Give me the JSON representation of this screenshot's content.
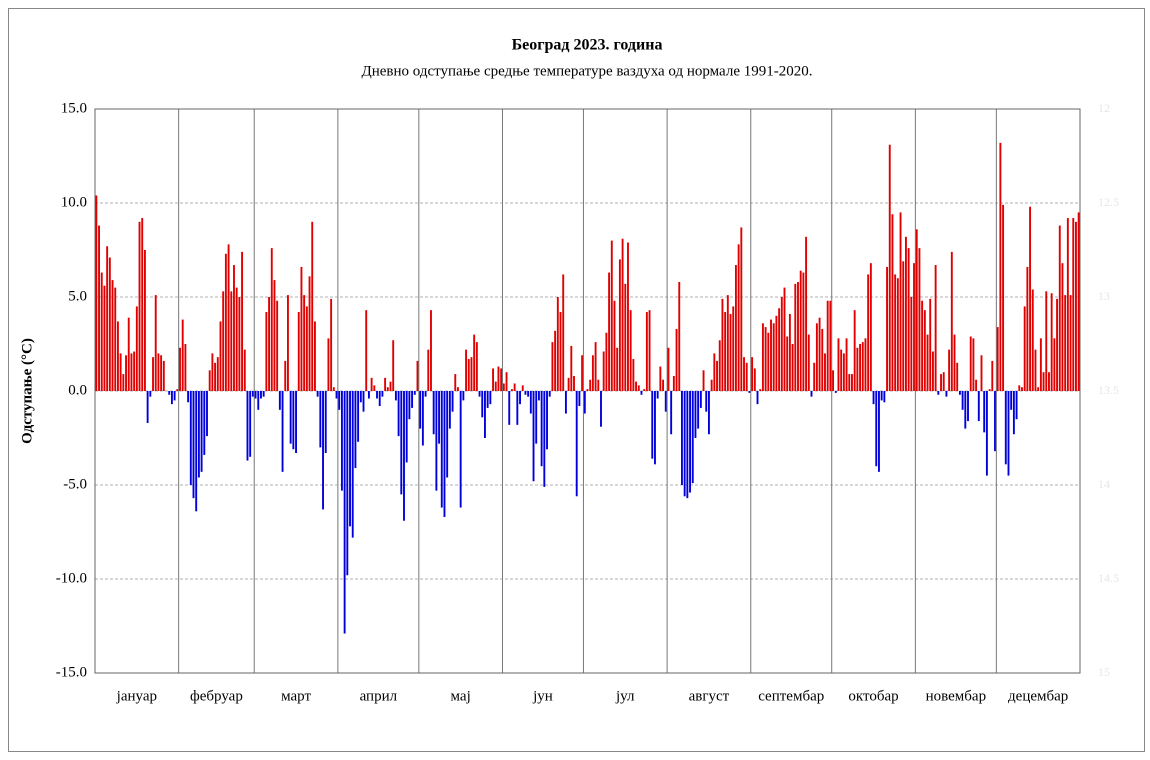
{
  "chart_data": {
    "type": "bar",
    "title": "Београд  2023. година",
    "subtitle": "Дневно одступање средње температуре ваздуха од нормале 1991-2020.",
    "ylabel": "Одступање (°C)",
    "categories": [
      "јануар",
      "фебруар",
      "март",
      "април",
      "мај",
      "јун",
      "јул",
      "август",
      "септембар",
      "октобар",
      "новембар",
      "децембар"
    ],
    "values": [
      [
        10.4,
        8.8,
        6.3,
        5.6,
        7.7,
        7.1,
        5.9,
        5.5,
        3.7,
        2.0,
        0.9,
        1.9,
        3.9,
        2.0,
        2.1,
        4.5,
        9.0,
        9.2,
        7.5,
        -1.7,
        -0.3,
        1.8,
        5.1,
        2.0,
        1.9,
        1.6,
        0,
        -0.2,
        -0.7,
        -0.5,
        0.1
      ],
      [
        2.3,
        3.8,
        2.5,
        -0.6,
        -5.0,
        -5.7,
        -6.4,
        -4.6,
        -4.3,
        -3.4,
        -2.4,
        1.1,
        2.0,
        1.5,
        1.8,
        3.7,
        5.3,
        7.3,
        7.8,
        5.3,
        6.7,
        5.5,
        5.0,
        7.4,
        2.2,
        -3.7,
        -3.5,
        -0.3
      ],
      [
        -0.4,
        -1.0,
        -0.4,
        -0.3,
        4.2,
        5.0,
        7.6,
        5.9,
        4.8,
        -1.0,
        -4.3,
        1.6,
        5.1,
        -2.8,
        -3.1,
        -3.3,
        4.2,
        6.6,
        5.1,
        4.5,
        6.1,
        9.0,
        3.7,
        -0.3,
        -3.0,
        -6.3,
        -3.3,
        2.8,
        4.9,
        0.2,
        -0.4
      ],
      [
        -1.0,
        -5.3,
        -12.9,
        -9.8,
        -7.2,
        -7.8,
        -4.1,
        -2.7,
        -0.6,
        -1.1,
        4.3,
        -0.4,
        0.7,
        0.3,
        -0.4,
        -0.8,
        -0.3,
        0.7,
        0.2,
        0.5,
        2.7,
        -0.5,
        -2.4,
        -5.5,
        -6.9,
        -3.8,
        -1.5,
        -0.9,
        -0.2,
        1.6
      ],
      [
        -2.0,
        -2.9,
        -0.3,
        2.2,
        4.3,
        -2.3,
        -5.3,
        -2.8,
        -6.2,
        -6.7,
        -4.6,
        -2.0,
        -1.1,
        0.9,
        0.2,
        -6.2,
        -0.5,
        2.2,
        1.7,
        1.8,
        3.0,
        2.6,
        -0.3,
        -1.4,
        -2.5,
        -0.9,
        -0.7,
        1.2,
        0.5,
        1.3,
        1.2
      ],
      [
        0.4,
        1.0,
        -1.8,
        0.1,
        0.4,
        -1.8,
        -0.7,
        0.3,
        -0.2,
        -0.3,
        -1.2,
        -4.8,
        -2.8,
        -0.5,
        -4.0,
        -5.1,
        -3.1,
        -0.3,
        2.6,
        3.2,
        5.0,
        4.2,
        6.2,
        -1.2,
        0.7,
        2.4,
        0.8,
        -5.6,
        -0.8,
        1.9
      ],
      [
        -1.2,
        0.1,
        0.6,
        1.9,
        2.6,
        0.6,
        -1.9,
        2.1,
        3.1,
        6.3,
        8.0,
        4.8,
        2.3,
        7.0,
        8.1,
        5.7,
        7.9,
        4.3,
        1.7,
        0.5,
        0.3,
        -0.2,
        0.1,
        4.2,
        4.3,
        -3.6,
        -3.9,
        -0.4,
        1.3,
        0.6,
        -1.1
      ],
      [
        2.3,
        -2.3,
        0.8,
        3.3,
        5.8,
        -5.0,
        -5.6,
        -5.7,
        -5.4,
        -4.9,
        -2.5,
        -2.0,
        -0.9,
        1.1,
        -1.1,
        -2.3,
        0.6,
        2.0,
        1.6,
        2.7,
        4.9,
        4.2,
        5.1,
        4.1,
        4.5,
        6.7,
        7.8,
        8.7,
        1.8,
        1.5,
        -0.1
      ],
      [
        1.8,
        1.2,
        -0.7,
        0.1,
        3.6,
        3.4,
        3.1,
        3.8,
        3.6,
        4.0,
        4.4,
        5.0,
        5.5,
        2.9,
        4.1,
        2.5,
        5.7,
        5.8,
        6.4,
        6.3,
        8.2,
        3.0,
        -0.3,
        1.5,
        3.6,
        3.9,
        3.3,
        2.0,
        4.8,
        4.8
      ],
      [
        1.1,
        -0.1,
        2.8,
        2.2,
        2.0,
        2.8,
        0.9,
        0.9,
        4.3,
        2.3,
        2.5,
        2.6,
        2.8,
        6.2,
        6.8,
        -0.7,
        -4.0,
        -4.3,
        -0.5,
        -0.6,
        6.6,
        13.1,
        9.4,
        6.2,
        6.0,
        9.5,
        6.9,
        8.2,
        7.6,
        5.0,
        6.8
      ],
      [
        8.6,
        7.6,
        4.8,
        4.3,
        3.0,
        4.9,
        2.1,
        6.7,
        -0.2,
        0.9,
        1.0,
        -0.3,
        2.2,
        7.4,
        3.0,
        1.5,
        -0.2,
        -1.0,
        -2.0,
        -1.6,
        2.9,
        2.8,
        0.6,
        -1.6,
        1.9,
        -2.2,
        -4.5,
        0.1,
        1.6,
        -3.2
      ],
      [
        3.4,
        13.2,
        9.9,
        -3.9,
        -4.5,
        -1.0,
        -2.3,
        -1.5,
        0.3,
        0.2,
        4.5,
        6.6,
        9.8,
        5.4,
        2.2,
        0.2,
        2.8,
        1.0,
        5.3,
        1.0,
        5.2,
        2.8,
        4.9,
        8.8,
        6.8,
        5.1,
        9.2,
        5.1,
        9.2,
        9.0,
        9.5
      ]
    ],
    "color_positive": "#e00000",
    "color_negative": "#0000dd",
    "ylim": [
      -15,
      15
    ],
    "yticks": [
      {
        "value": -15,
        "label": "-15.0"
      },
      {
        "value": -10,
        "label": "-10.0"
      },
      {
        "value": -5,
        "label": "-5.0"
      },
      {
        "value": 0,
        "label": "0.0"
      },
      {
        "value": 5,
        "label": "5.0"
      },
      {
        "value": 10,
        "label": "10.0"
      },
      {
        "value": 15,
        "label": "15.0"
      }
    ],
    "y2lim": [
      15,
      12
    ],
    "y2ticks": [
      15,
      14.5,
      14,
      13.5,
      13,
      12.5,
      12
    ],
    "grid": true
  }
}
